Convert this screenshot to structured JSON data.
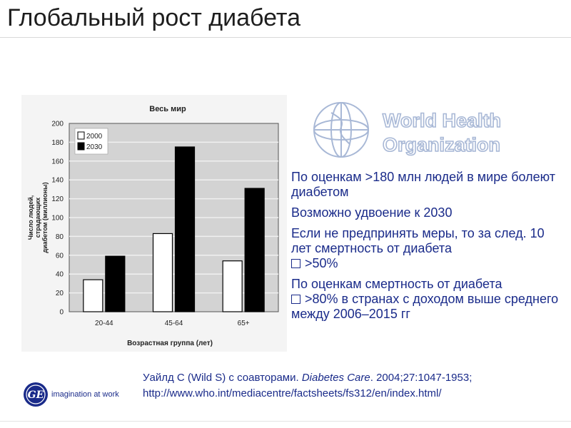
{
  "slide": {
    "title": "Глобальный рост диабета"
  },
  "chart_data": {
    "type": "bar",
    "title": "Весь мир",
    "xlabel": "Возрастная группа (лет)",
    "ylabel": "Число людей, страдающих диабетом (миллионы)",
    "ylim": [
      0,
      200
    ],
    "yticks": [
      "0",
      "20",
      "40",
      "60",
      "80",
      "100",
      "120",
      "140",
      "160",
      "180",
      "200"
    ],
    "categories": [
      "20-44",
      "45-64",
      "65+"
    ],
    "series": [
      {
        "name": "2000",
        "values": [
          34,
          83,
          54
        ],
        "color": "#ffffff"
      },
      {
        "name": "2030",
        "values": [
          59,
          175,
          131
        ],
        "color": "#000000"
      }
    ],
    "grid": true,
    "legend_position": "top-left"
  },
  "who_logo": {
    "line1": "World Health",
    "line2": "Organization",
    "color": "#a8b8d6"
  },
  "bullets": [
    {
      "text": "По оценкам >180 млн людей в мире болеют диабетом"
    },
    {
      "text": "Возможно удвоение к 2030"
    },
    {
      "text_before": "Если не предпринять меры, то за след. 10 лет смертность от диабета",
      "text_after": ">50%"
    },
    {
      "text_before": "По оценкам смертность от диабета",
      "text_after": ">80% в странах с доходом выше среднего между 2006–2015 гг"
    }
  ],
  "citation": {
    "authors": "Уайлд С (Wild S) с соавторами.",
    "journal": "Diabetes Care",
    "ref": ". 2004;27:1047-1953;",
    "url": "http://www.who.int/mediacentre/factsheets/fs312/en/index.html/"
  },
  "footer": {
    "ge_tagline": "imagination at work",
    "ge_icon": "ge-logo-icon",
    "brand_color": "#1a2b8a"
  }
}
